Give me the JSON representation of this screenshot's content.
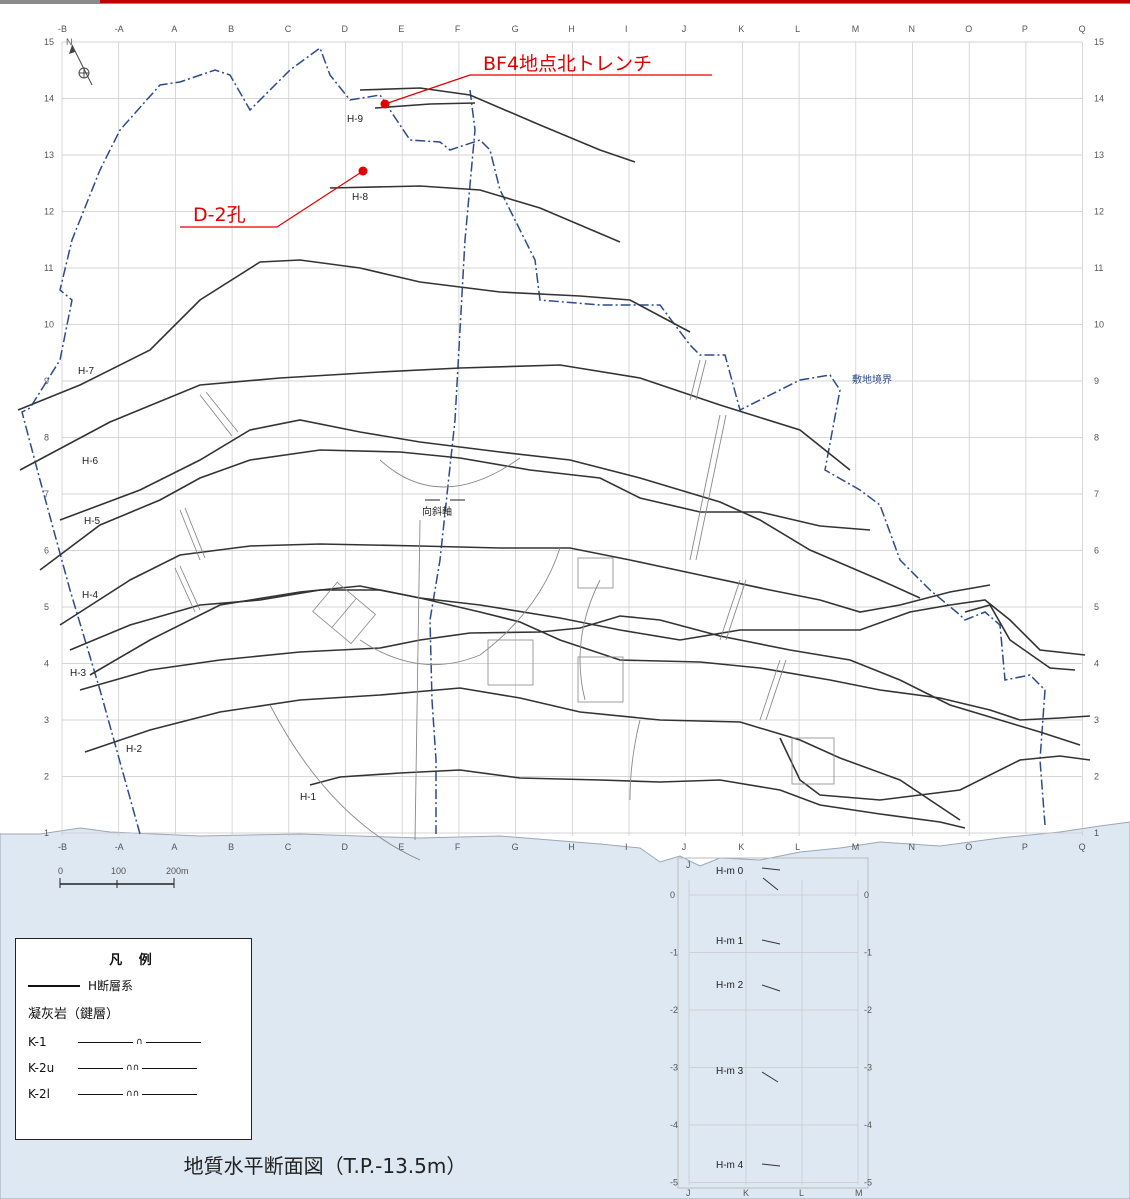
{
  "map": {
    "col_labels": [
      "-B",
      "-A",
      "A",
      "B",
      "C",
      "D",
      "E",
      "F",
      "G",
      "H",
      "I",
      "J",
      "K",
      "L",
      "M",
      "N",
      "O",
      "P",
      "Q"
    ],
    "row_labels": [
      "15",
      "14",
      "13",
      "12",
      "11",
      "10",
      "9",
      "8",
      "7",
      "6",
      "5",
      "4",
      "3",
      "2",
      "1"
    ],
    "fault_labels": [
      "H-9",
      "H-8",
      "H-7",
      "H-6",
      "H-5",
      "H-4",
      "H-3",
      "H-2",
      "H-1"
    ],
    "site_boundary_label": "敷地境界",
    "syncline_label": "向斜軸",
    "scale_labels": [
      "0",
      "100",
      "200m"
    ],
    "inset": {
      "top_col_label": "J",
      "row_labels": [
        "0",
        "-1",
        "-2",
        "-3",
        "-4",
        "-5"
      ],
      "bottom_col_labels": [
        "J",
        "K",
        "L",
        "M"
      ],
      "fault_labels": [
        "H-m 0",
        "H-m 1",
        "H-m 2",
        "H-m 3",
        "H-m 4"
      ]
    },
    "colors": {
      "fault": "#333333",
      "grid": "#c8c8c8",
      "boundary": "#2e4a8a",
      "callout": "#e00000",
      "sea": "#dde8f3"
    },
    "icons": [
      "north-arrow-icon"
    ]
  },
  "callouts": [
    {
      "label": "BF4地点北トレンチ"
    },
    {
      "label": "D-2孔"
    }
  ],
  "legend": {
    "title": "凡 例",
    "fault_system": "H断層系",
    "tuff_heading": "凝灰岩（鍵層）",
    "items": [
      {
        "name": "K-1",
        "mark": "∩"
      },
      {
        "name": "K-2u",
        "mark": "∩∩"
      },
      {
        "name": "K-2l",
        "mark": "∩∩"
      }
    ]
  },
  "caption": "地質水平断面図（T.P.-13.5m）"
}
